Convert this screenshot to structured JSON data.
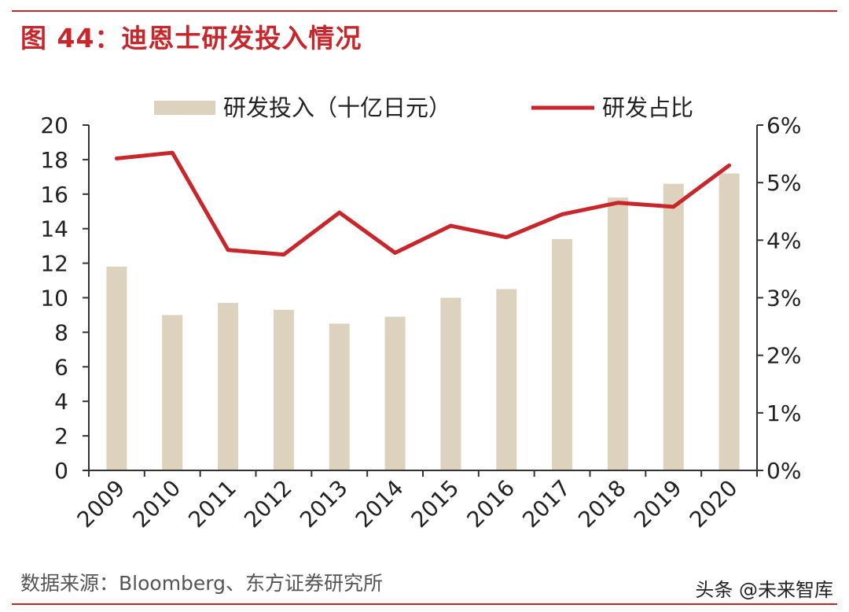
{
  "title": "图 44：迪恩士研发投入情况",
  "source": "数据来源：Bloomberg、东方证券研究所",
  "watermark": "头条 @未来智库",
  "colors": {
    "accent": "#c9262b",
    "bar": "#ddd2be",
    "axis": "#333333"
  },
  "chart_data": {
    "type": "bar",
    "categories": [
      "2009",
      "2010",
      "2011",
      "2012",
      "2013",
      "2014",
      "2015",
      "2016",
      "2017",
      "2018",
      "2019",
      "2020"
    ],
    "series": [
      {
        "name": "研发投入（十亿日元）",
        "type": "bar",
        "axis": "left",
        "values": [
          11.8,
          9.0,
          9.7,
          9.3,
          8.5,
          8.9,
          10.0,
          10.5,
          13.4,
          15.8,
          16.6,
          17.2
        ]
      },
      {
        "name": "研发占比",
        "type": "line",
        "axis": "right",
        "values": [
          5.42,
          5.52,
          3.83,
          3.75,
          4.48,
          3.78,
          4.25,
          4.05,
          4.45,
          4.65,
          4.58,
          5.3
        ]
      }
    ],
    "y_left": {
      "min": 0,
      "max": 20,
      "ticks": [
        "0",
        "2",
        "4",
        "6",
        "8",
        "10",
        "12",
        "14",
        "16",
        "18",
        "20"
      ]
    },
    "y_right": {
      "min": 0,
      "max": 6,
      "ticks": [
        "0%",
        "1%",
        "2%",
        "3%",
        "4%",
        "5%",
        "6%"
      ]
    },
    "legend_position": "top",
    "grid": false
  }
}
